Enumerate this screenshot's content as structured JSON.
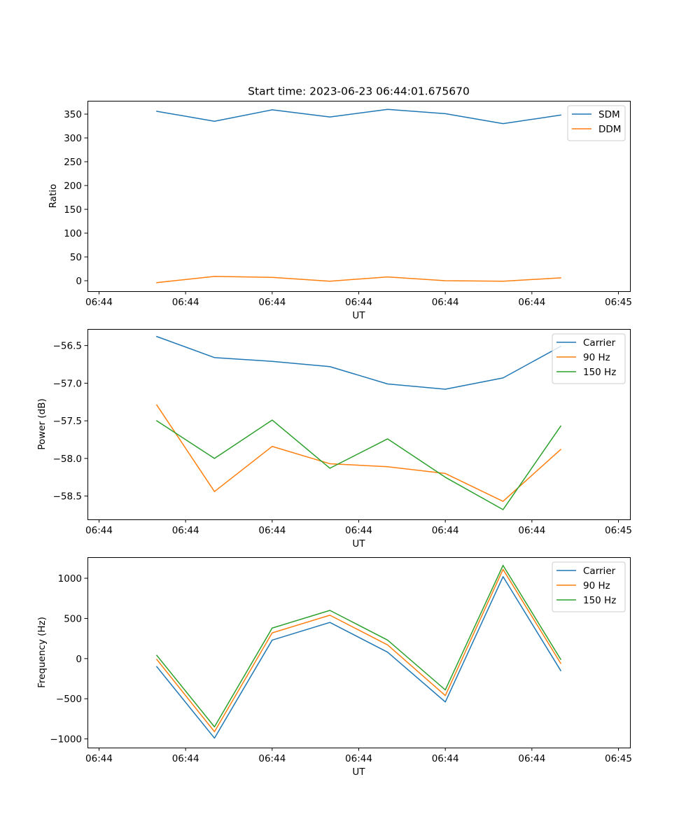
{
  "figure": {
    "title": "Start time: 2023-06-23 06:44:01.675670"
  },
  "colors": {
    "blue": "#1f77b4",
    "orange": "#ff7f0e",
    "green": "#2ca02c"
  },
  "chart_data": [
    {
      "type": "line",
      "title": "Start time: 2023-06-23 06:44:01.675670",
      "xlabel": "UT",
      "ylabel": "Ratio",
      "x": [
        1,
        2,
        3,
        4,
        5,
        6,
        7,
        8
      ],
      "x_ticks": {
        "values": [
          0,
          1.5,
          3,
          4.5,
          6,
          7.5,
          9
        ],
        "labels": [
          "06:44",
          "06:44",
          "06:44",
          "06:44",
          "06:44",
          "06:44",
          "06:45"
        ]
      },
      "xlim": [
        -0.2,
        9.2
      ],
      "ylim": [
        -22,
        378
      ],
      "y_ticks": [
        0,
        50,
        100,
        150,
        200,
        250,
        300,
        350
      ],
      "y_tick_labels": [
        "0",
        "50",
        "100",
        "150",
        "200",
        "250",
        "300",
        "350"
      ],
      "legend": "top-right",
      "grid": false,
      "series": [
        {
          "name": "SDM",
          "color": "#1f77b4",
          "values": [
            356,
            335,
            359,
            344,
            360,
            351,
            330,
            348
          ]
        },
        {
          "name": "DDM",
          "color": "#ff7f0e",
          "values": [
            -4,
            9,
            7,
            -1,
            8,
            0,
            -1,
            6
          ]
        }
      ]
    },
    {
      "type": "line",
      "title": "",
      "xlabel": "UT",
      "ylabel": "Power (dB)",
      "x": [
        1,
        2,
        3,
        4,
        5,
        6,
        7,
        8
      ],
      "x_ticks": {
        "values": [
          0,
          1.5,
          3,
          4.5,
          6,
          7.5,
          9
        ],
        "labels": [
          "06:44",
          "06:44",
          "06:44",
          "06:44",
          "06:44",
          "06:44",
          "06:45"
        ]
      },
      "xlim": [
        -0.2,
        9.2
      ],
      "ylim": [
        -58.81,
        -56.28
      ],
      "y_ticks": [
        -58.5,
        -58.0,
        -57.5,
        -57.0,
        -56.5
      ],
      "y_tick_labels": [
        "−58.5",
        "−58.0",
        "−57.5",
        "−57.0",
        "−56.5"
      ],
      "legend": "top-right",
      "grid": false,
      "series": [
        {
          "name": "Carrier",
          "color": "#1f77b4",
          "values": [
            -56.38,
            -56.66,
            -56.71,
            -56.78,
            -57.01,
            -57.08,
            -56.93,
            -56.51
          ]
        },
        {
          "name": "90 Hz",
          "color": "#ff7f0e",
          "values": [
            -57.29,
            -58.44,
            -57.84,
            -58.07,
            -58.11,
            -58.2,
            -58.57,
            -57.88
          ]
        },
        {
          "name": "150 Hz",
          "color": "#2ca02c",
          "values": [
            -57.5,
            -58.0,
            -57.49,
            -58.13,
            -57.74,
            -58.25,
            -58.68,
            -57.57
          ]
        }
      ]
    },
    {
      "type": "line",
      "title": "",
      "xlabel": "UT",
      "ylabel": "Frequency (Hz)",
      "x": [
        1,
        2,
        3,
        4,
        5,
        6,
        7,
        8
      ],
      "x_ticks": {
        "values": [
          0,
          1.5,
          3,
          4.5,
          6,
          7.5,
          9
        ],
        "labels": [
          "06:44",
          "06:44",
          "06:44",
          "06:44",
          "06:44",
          "06:44",
          "06:45"
        ]
      },
      "xlim": [
        -0.2,
        9.2
      ],
      "ylim": [
        -1108,
        1262
      ],
      "y_ticks": [
        -1000,
        -500,
        0,
        500,
        1000
      ],
      "y_tick_labels": [
        "−1000",
        "−500",
        "0",
        "500",
        "1000"
      ],
      "legend": "top-right",
      "grid": false,
      "series": [
        {
          "name": "Carrier",
          "color": "#1f77b4",
          "values": [
            -100,
            -990,
            230,
            450,
            80,
            -540,
            1020,
            -150
          ]
        },
        {
          "name": "90 Hz",
          "color": "#ff7f0e",
          "values": [
            -10,
            -910,
            320,
            540,
            170,
            -460,
            1110,
            -60
          ]
        },
        {
          "name": "150 Hz",
          "color": "#2ca02c",
          "values": [
            40,
            -850,
            380,
            600,
            230,
            -390,
            1160,
            -10
          ]
        }
      ]
    }
  ]
}
